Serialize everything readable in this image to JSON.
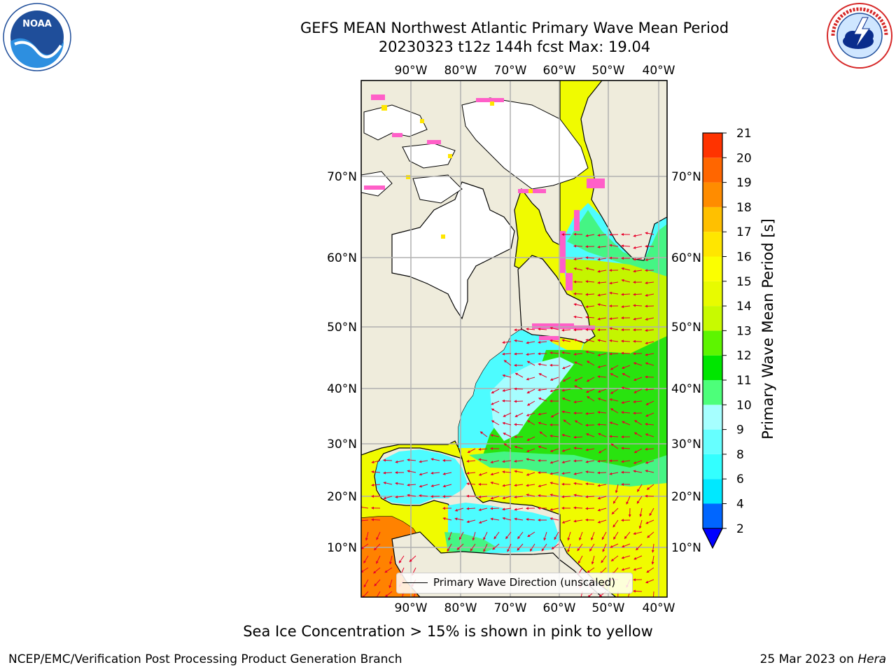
{
  "title": {
    "line1": "GEFS MEAN Northwest Atlantic Primary Wave Mean Period",
    "line2": "20230323 t12z 144h fcst   Max: 19.04"
  },
  "logos": {
    "left": {
      "name": "noaa-logo",
      "text": "NOAA",
      "ring_text": "NATIONAL OCEANIC AND ATMOSPHERIC ADMINISTRATION · U.S. DEPARTMENT OF COMMERCE"
    },
    "right": {
      "name": "nws-logo",
      "ring_text": "NATIONAL WEATHER SERVICE"
    }
  },
  "map": {
    "lon_labels": [
      "90°W",
      "80°W",
      "70°W",
      "60°W",
      "50°W",
      "40°W"
    ],
    "lat_labels": [
      "70°N",
      "60°N",
      "50°N",
      "40°N",
      "30°N",
      "20°N",
      "10°N"
    ],
    "colors": {
      "land": "#efecdc",
      "ice_free_white": "#ffffff",
      "cyan": "#4dfcff",
      "lightcyan": "#a6fdff",
      "lightgreen": "#45f584",
      "green": "#29e30f",
      "yellowgreen": "#c4f500",
      "yellow": "#f0fb00",
      "orange": "#ff8200",
      "vector": "#e8002a",
      "ice_pink": "#ff5fc8",
      "grid": "#b0b0b0"
    },
    "legend_label": "Primary Wave Direction (unscaled)"
  },
  "colorbar": {
    "label": "Primary Wave Mean Period [s]",
    "ticks": [
      "2",
      "4",
      "6",
      "8",
      "9",
      "10",
      "11",
      "12",
      "13",
      "14",
      "15",
      "16",
      "17",
      "18",
      "19",
      "20",
      "21"
    ],
    "colors": [
      "#0066ff",
      "#00e8ff",
      "#33ffff",
      "#66ffff",
      "#a6ffff",
      "#4dff7a",
      "#00e600",
      "#5df500",
      "#c8fa00",
      "#e8fb00",
      "#fbff00",
      "#ffe600",
      "#ffc000",
      "#ff8c00",
      "#ff6600",
      "#ff3300",
      "#ff0000"
    ],
    "extend_color": "#0000ff"
  },
  "footer": {
    "caption": "Sea Ice Concentration > 15% is shown in pink to yellow",
    "left": "NCEP/EMC/Verification Post Processing Product Generation Branch",
    "right_date": "25 Mar 2023 on ",
    "right_machine": "Hera"
  }
}
